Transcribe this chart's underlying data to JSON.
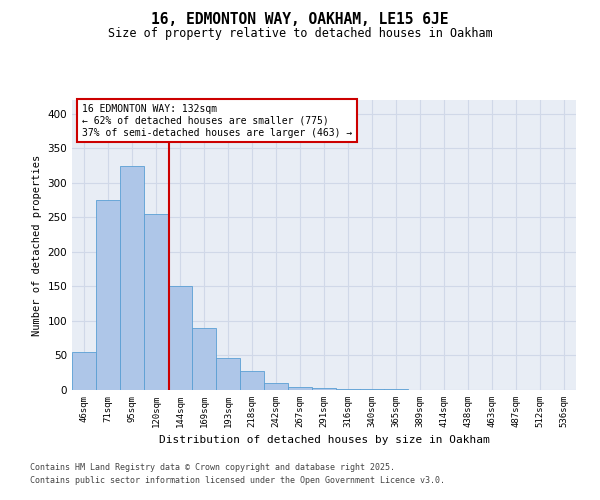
{
  "title1": "16, EDMONTON WAY, OAKHAM, LE15 6JE",
  "title2": "Size of property relative to detached houses in Oakham",
  "xlabel": "Distribution of detached houses by size in Oakham",
  "ylabel": "Number of detached properties",
  "categories": [
    "46sqm",
    "71sqm",
    "95sqm",
    "120sqm",
    "144sqm",
    "169sqm",
    "193sqm",
    "218sqm",
    "242sqm",
    "267sqm",
    "291sqm",
    "316sqm",
    "340sqm",
    "365sqm",
    "389sqm",
    "414sqm",
    "438sqm",
    "463sqm",
    "487sqm",
    "512sqm",
    "536sqm"
  ],
  "values": [
    55,
    275,
    325,
    255,
    150,
    90,
    47,
    28,
    10,
    5,
    3,
    2,
    1,
    1,
    0,
    0,
    0,
    0,
    0,
    0,
    0
  ],
  "bar_color": "#aec6e8",
  "bar_edge_color": "#5a9fd4",
  "vline_x": 3.55,
  "vline_color": "#cc0000",
  "annotation_text": "16 EDMONTON WAY: 132sqm\n← 62% of detached houses are smaller (775)\n37% of semi-detached houses are larger (463) →",
  "annotation_box_color": "#cc0000",
  "annotation_bg": "white",
  "ylim": [
    0,
    420
  ],
  "yticks": [
    0,
    50,
    100,
    150,
    200,
    250,
    300,
    350,
    400
  ],
  "grid_color": "#d0d8e8",
  "bg_color": "#e8edf5",
  "footer1": "Contains HM Land Registry data © Crown copyright and database right 2025.",
  "footer2": "Contains public sector information licensed under the Open Government Licence v3.0."
}
